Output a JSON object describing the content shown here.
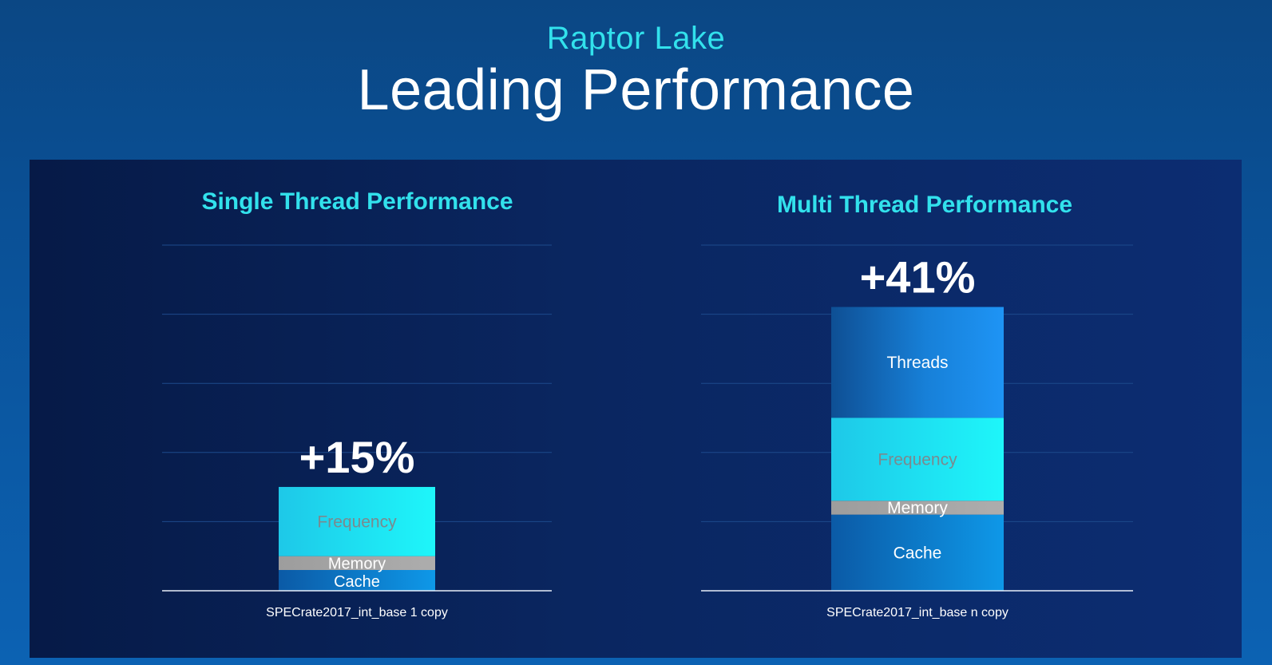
{
  "header": {
    "subtitle": "Raptor Lake",
    "title": "Leading Performance"
  },
  "colors": {
    "accent": "#32e1ec",
    "cache": "#0d8fe0",
    "memory": "#a3a3a3",
    "frequency": "#19f0f7",
    "threads": "#1d8ff0"
  },
  "chart_data": [
    {
      "type": "bar",
      "stacked": true,
      "title": "Single Thread Performance",
      "xlabel": "SPECrate2017_int_base 1 copy",
      "categories": [
        "SPECrate2017_int_base 1 copy"
      ],
      "total_label": "+15%",
      "total": 15,
      "ylim": [
        0,
        50
      ],
      "grid": true,
      "series": [
        {
          "name": "Cache",
          "values": [
            3
          ]
        },
        {
          "name": "Memory",
          "values": [
            2
          ]
        },
        {
          "name": "Frequency",
          "values": [
            10
          ]
        }
      ]
    },
    {
      "type": "bar",
      "stacked": true,
      "title": "Multi Thread Performance",
      "xlabel": "SPECrate2017_int_base n copy",
      "categories": [
        "SPECrate2017_int_base n copy"
      ],
      "total_label": "+41%",
      "total": 41,
      "ylim": [
        0,
        50
      ],
      "grid": true,
      "series": [
        {
          "name": "Cache",
          "values": [
            11
          ]
        },
        {
          "name": "Memory",
          "values": [
            2
          ]
        },
        {
          "name": "Frequency",
          "values": [
            12
          ]
        },
        {
          "name": "Threads",
          "values": [
            16
          ]
        }
      ]
    }
  ]
}
